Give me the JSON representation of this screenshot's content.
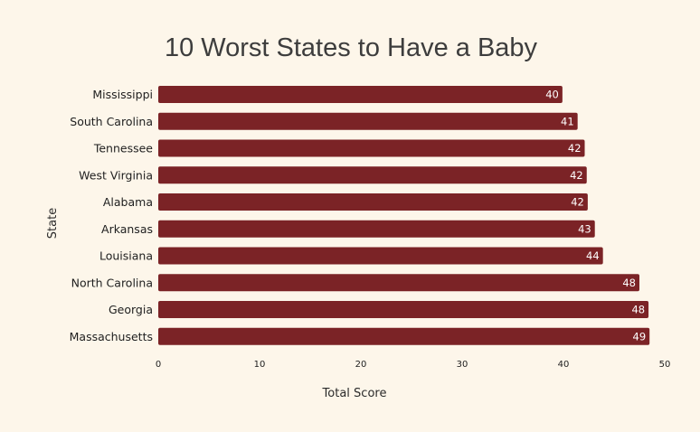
{
  "chart_data": {
    "type": "bar",
    "orientation": "horizontal",
    "title": "10 Worst States to Have a Baby",
    "xlabel": "Total Score",
    "ylabel": "State",
    "categories": [
      "Mississippi",
      "South Carolina",
      "Tennessee",
      "West Virginia",
      "Alabama",
      "Arkansas",
      "Louisiana",
      "North Carolina",
      "Georgia",
      "Massachusetts"
    ],
    "values": [
      39.9,
      41.4,
      42.1,
      42.3,
      42.4,
      43.1,
      43.9,
      47.5,
      48.4,
      48.5
    ],
    "data_labels": [
      "40",
      "41",
      "42",
      "42",
      "42",
      "43",
      "44",
      "48",
      "48",
      "49"
    ],
    "xlim": [
      0,
      50
    ],
    "xticks": [
      0,
      10,
      20,
      30,
      40,
      50
    ],
    "xtick_labels": [
      "0",
      "10",
      "20",
      "30",
      "40",
      "50"
    ],
    "grid": false,
    "legend": "none",
    "colors": {
      "bar": "#7b2326",
      "background": "#fdf6ea",
      "data_label": "#ffffff"
    }
  }
}
